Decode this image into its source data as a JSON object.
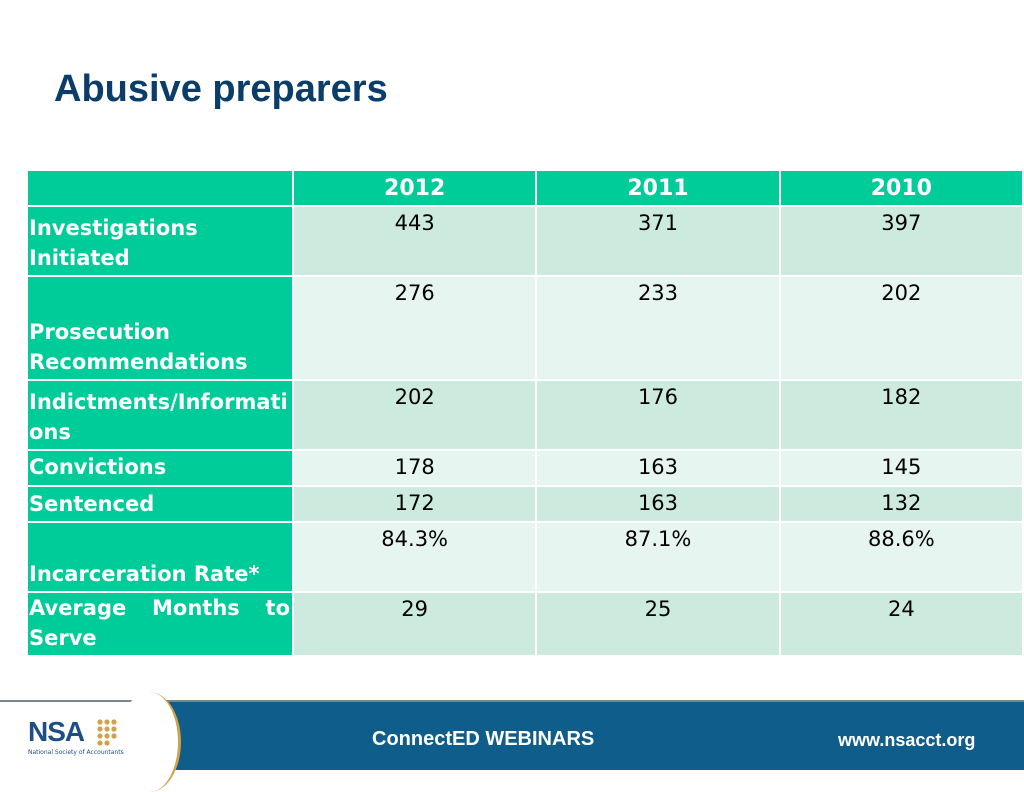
{
  "slide": {
    "title": "Abusive preparers"
  },
  "table": {
    "columns": [
      "",
      "2012",
      "2011",
      "2010"
    ],
    "rows": [
      {
        "label": "Investigations Initiated",
        "values": [
          "443",
          "371",
          "397"
        ]
      },
      {
        "label": "Prosecution Recommendations",
        "values": [
          "276",
          "233",
          "202"
        ]
      },
      {
        "label": "Indictments/Informations",
        "values": [
          "202",
          "176",
          "182"
        ]
      },
      {
        "label": "Convictions",
        "values": [
          "178",
          "163",
          "145"
        ]
      },
      {
        "label": "Sentenced",
        "values": [
          "172",
          "163",
          "132"
        ]
      },
      {
        "label": "Incarceration Rate*",
        "values": [
          "84.3%",
          "87.1%",
          "88.6%"
        ]
      },
      {
        "label": "Average Months to Serve",
        "values": [
          "29",
          "25",
          "24"
        ]
      }
    ],
    "colors": {
      "header": "#00cc99",
      "row_odd": "#cdeadf",
      "row_even": "#e6f5ef"
    }
  },
  "footer": {
    "logo": "NSA",
    "logo_subtitle": "National Society of Accountants",
    "brand": "ConnectED WEBINARS",
    "website": "www.nsacct.org",
    "colors": {
      "bar": "#0e5d8b",
      "accent": "#d0a24a",
      "logo": "#1d4f86"
    }
  }
}
